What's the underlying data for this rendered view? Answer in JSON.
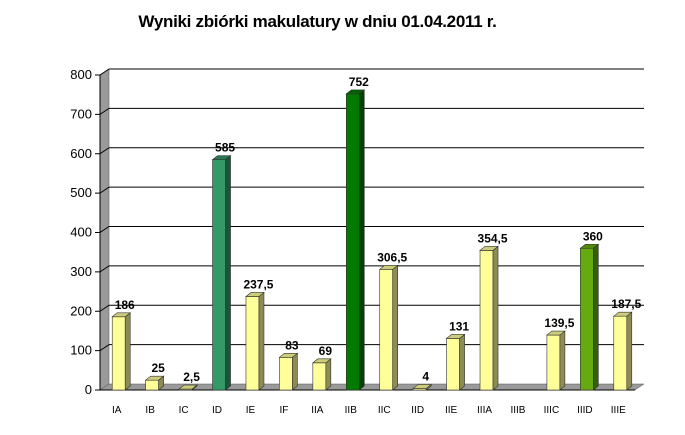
{
  "chart_data": {
    "type": "bar",
    "title": "Wyniki zbiórki makulatury w dniu 01.04.2011 r.",
    "categories": [
      "IA",
      "IB",
      "IC",
      "ID",
      "IE",
      "IF",
      "IIA",
      "IIB",
      "IIC",
      "IID",
      "IIE",
      "IIIA",
      "IIIB",
      "IIIC",
      "IIID",
      "IIIE"
    ],
    "values": [
      186,
      25,
      2.5,
      585,
      237.5,
      83,
      69,
      752,
      306.5,
      4,
      131,
      354.5,
      null,
      139.5,
      360,
      187.5
    ],
    "data_labels": [
      "186",
      "25",
      "2,5",
      "585",
      "237,5",
      "83",
      "69",
      "752",
      "306,5",
      "4",
      "131",
      "354,5",
      "",
      "139,5",
      "360",
      "187,5"
    ],
    "yticks": [
      "0",
      "100",
      "200",
      "300",
      "400",
      "500",
      "600",
      "700",
      "800"
    ],
    "ylim": [
      0,
      800
    ],
    "grid": true,
    "legend": "none",
    "colors": [
      "#FFFF99",
      "#FFFF99",
      "#FFFF99",
      "#339966",
      "#FFFF99",
      "#FFFF99",
      "#FFFF99",
      "#007A00",
      "#FFFF99",
      "#FFFF99",
      "#FFFF99",
      "#FFFF99",
      "#FFFF99",
      "#FFFF99",
      "#66AA11",
      "#FFFF99"
    ]
  }
}
